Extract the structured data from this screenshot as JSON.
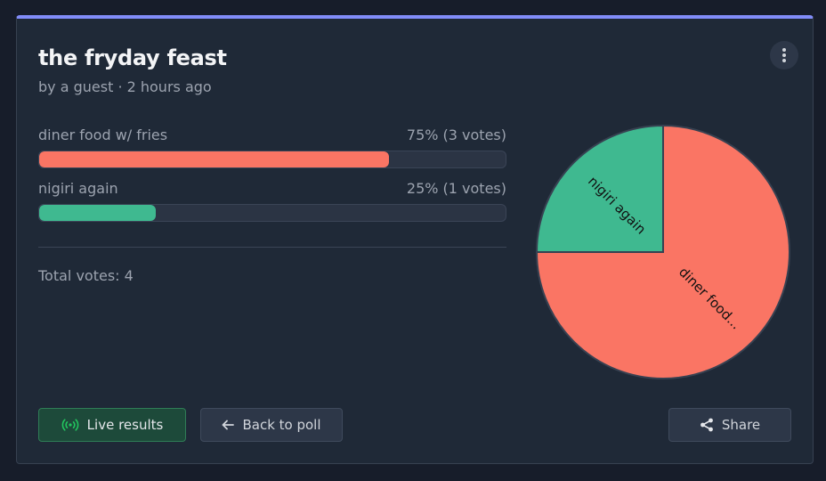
{
  "poll": {
    "title": "the fryday feast",
    "meta": "by a guest · 2 hours ago",
    "options": [
      {
        "label": "diner food w/ fries",
        "stat": "75% (3 votes)",
        "percent": 75,
        "color": "#fa7564"
      },
      {
        "label": "nigiri again",
        "stat": "25% (1 votes)",
        "percent": 25,
        "color": "#3fb990"
      }
    ],
    "total": "Total votes: 4"
  },
  "chart_data": {
    "type": "pie",
    "slices": [
      {
        "label": "diner food...",
        "value": 75,
        "color": "#fa7564"
      },
      {
        "label": "nigiri again",
        "value": 25,
        "color": "#3fb990"
      }
    ]
  },
  "buttons": {
    "live": "Live results",
    "back": "Back to poll",
    "share": "Share"
  },
  "icons": {
    "menu": "more-vertical-icon",
    "live": "broadcast-icon",
    "back": "arrow-left-icon",
    "share": "share-icon"
  },
  "colors": {
    "accent": "#818cf8",
    "live_green": "#22c55e"
  }
}
